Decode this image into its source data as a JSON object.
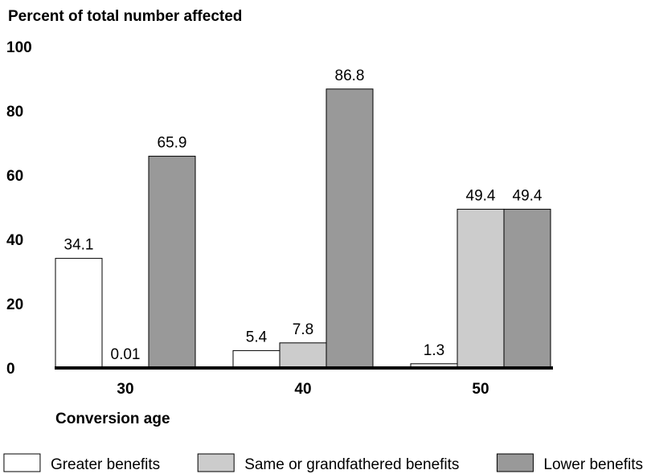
{
  "chart_data": {
    "type": "bar",
    "ylabel": "Percent of total number affected",
    "xlabel": "Conversion age",
    "categories": [
      "30",
      "40",
      "50"
    ],
    "ylim": [
      0,
      100
    ],
    "yticks": [
      "0",
      "20",
      "40",
      "60",
      "80",
      "100"
    ],
    "series": [
      {
        "name": "Greater benefits",
        "color": "#ffffff",
        "values": [
          34.1,
          5.4,
          1.3
        ],
        "labels": [
          "34.1",
          "5.4",
          "1.3"
        ]
      },
      {
        "name": "Same or grandfathered benefits",
        "color": "#cccccc",
        "values": [
          0.01,
          7.8,
          49.4
        ],
        "labels": [
          "0.01",
          "7.8",
          "49.4"
        ]
      },
      {
        "name": "Lower benefits",
        "color": "#999999",
        "values": [
          65.9,
          86.8,
          49.4
        ],
        "labels": [
          "65.9",
          "86.8",
          "49.4"
        ]
      }
    ],
    "legend_position": "bottom",
    "grid": false
  }
}
